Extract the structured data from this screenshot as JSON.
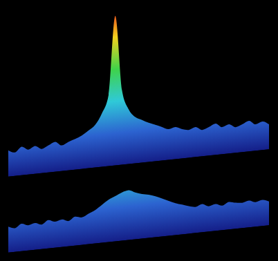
{
  "chart_data": [
    {
      "type": "area",
      "tick_labels": false,
      "xlim": [
        0,
        39
      ],
      "ylim": [
        -25,
        200
      ],
      "colors": [
        "#e8201a",
        "#f2d21e",
        "#3fd34a",
        "#2fc9d8",
        "#2c63d0",
        "#141e88"
      ],
      "x": [
        0,
        1,
        2,
        3,
        4,
        5,
        6,
        7,
        8,
        9,
        10,
        11,
        12,
        13,
        14,
        15,
        16,
        17,
        18,
        19,
        20,
        21,
        22,
        23,
        24,
        25,
        26,
        27,
        28,
        29,
        30,
        31,
        32,
        33,
        34,
        35,
        36,
        37,
        38,
        39
      ],
      "values": [
        12,
        8,
        15,
        10,
        14,
        9,
        13,
        17,
        11,
        15,
        18,
        22,
        28,
        35,
        50,
        75,
        185,
        80,
        52,
        40,
        35,
        30,
        26,
        22,
        18,
        20,
        16,
        14,
        17,
        12,
        15,
        19,
        13,
        16,
        11,
        14,
        18,
        12,
        15,
        10
      ]
    },
    {
      "type": "area",
      "tick_labels": false,
      "xlim": [
        0,
        39
      ],
      "ylim": [
        -25,
        200
      ],
      "colors": [
        "#e8201a",
        "#f2d21e",
        "#3fd34a",
        "#2fc9d8",
        "#2c63d0",
        "#141e88"
      ],
      "x": [
        0,
        1,
        2,
        3,
        4,
        5,
        6,
        7,
        8,
        9,
        10,
        11,
        12,
        13,
        14,
        15,
        16,
        17,
        18,
        19,
        20,
        21,
        22,
        23,
        24,
        25,
        26,
        27,
        28,
        29,
        30,
        31,
        32,
        33,
        34,
        35,
        36,
        37,
        38,
        39
      ],
      "values": [
        10,
        7,
        12,
        9,
        11,
        8,
        13,
        10,
        12,
        9,
        14,
        12,
        16,
        20,
        26,
        32,
        36,
        40,
        42,
        38,
        35,
        33,
        30,
        26,
        22,
        18,
        15,
        12,
        10,
        13,
        9,
        11,
        8,
        12,
        10,
        9,
        11,
        8,
        10,
        7
      ]
    }
  ]
}
